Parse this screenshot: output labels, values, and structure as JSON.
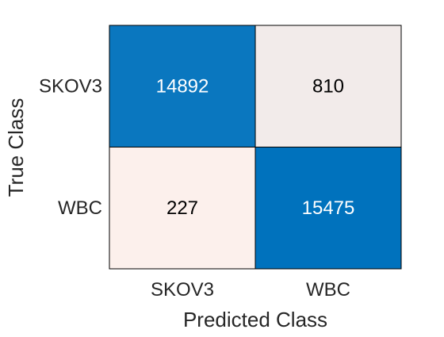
{
  "chart_data": {
    "type": "heatmap",
    "xlabel": "Predicted Class",
    "ylabel": "True Class",
    "x_categories": [
      "SKOV3",
      "WBC"
    ],
    "y_categories": [
      "SKOV3",
      "WBC"
    ],
    "values": [
      [
        14892,
        810
      ],
      [
        227,
        15475
      ]
    ],
    "colors": {
      "high": "#0072BD",
      "low": "#FCF0EC",
      "text_on_high": "#FFFFFF",
      "text_on_low": "#000000",
      "border": "#000000"
    }
  }
}
